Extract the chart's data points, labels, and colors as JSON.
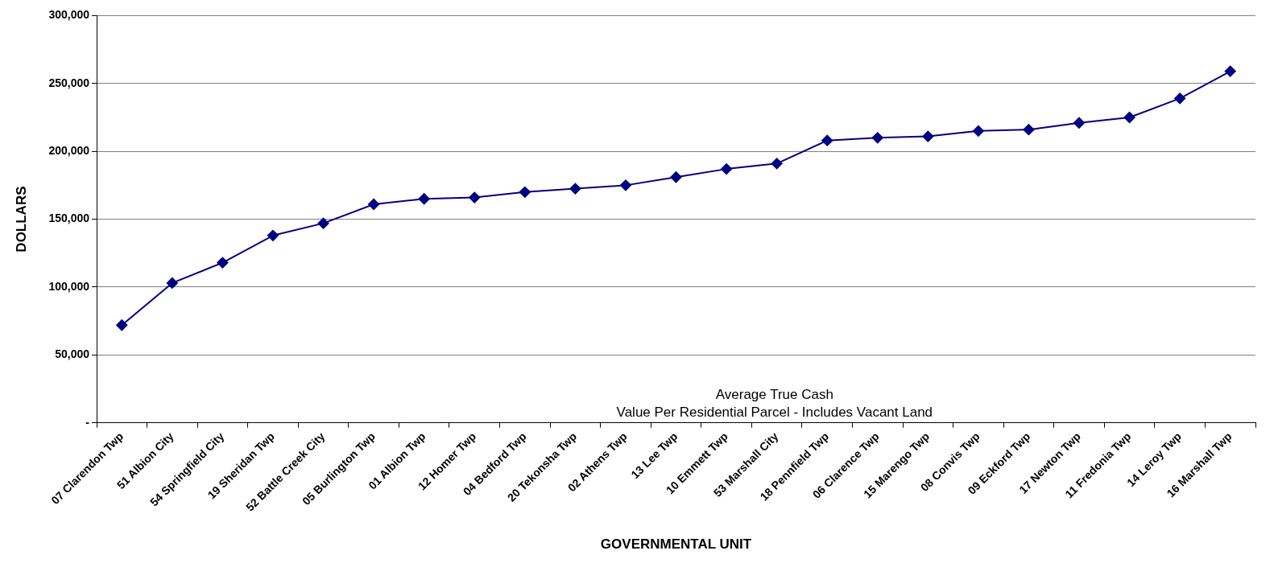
{
  "chart_data": {
    "type": "line",
    "xlabel": "GOVERNMENTAL UNIT",
    "ylabel": "DOLLARS",
    "annotations": [
      "Average True Cash\nValue Per Residential Parcel - Includes Vacant Land"
    ],
    "categories": [
      "07 Clarendon Twp",
      "51 Albion City",
      "54 Springfield City",
      "19 Sheridan Twp",
      "52 Battle Creek City",
      "05 Burlington Twp",
      "01 Albion Twp",
      "12 Homer Twp",
      "04 Bedford Twp",
      "20 Tekonsha Twp",
      "02 Athens Twp",
      "13 Lee Twp",
      "10 Emmett Twp",
      "53 Marshall City",
      "18 Pennfield Twp",
      "06 Clarence Twp",
      "15 Marengo Twp",
      "08 Convis Twp",
      "09 Eckford Twp",
      "17 Newton Twp",
      "11 Fredonia Twp",
      "14 Leroy Twp",
      "16 Marshall Twp"
    ],
    "series": [
      {
        "color": "#000080",
        "values": [
          72000,
          103000,
          118000,
          138000,
          147000,
          161000,
          165000,
          166000,
          170000,
          172500,
          175000,
          181000,
          187000,
          191000,
          208000,
          210000,
          211000,
          215000,
          216000,
          221000,
          225000,
          239000,
          259000
        ]
      }
    ],
    "ylim": [
      0,
      300000
    ],
    "yticks": [
      {
        "value": 0,
        "label": "-"
      },
      {
        "value": 50000,
        "label": "50,000"
      },
      {
        "value": 100000,
        "label": "100,000"
      },
      {
        "value": 150000,
        "label": "150,000"
      },
      {
        "value": 200000,
        "label": "200,000"
      },
      {
        "value": 250000,
        "label": "250,000"
      },
      {
        "value": 300000,
        "label": "300,000"
      }
    ],
    "grid": "y",
    "legend": false,
    "marker": "diamond",
    "line_style": "solid"
  }
}
